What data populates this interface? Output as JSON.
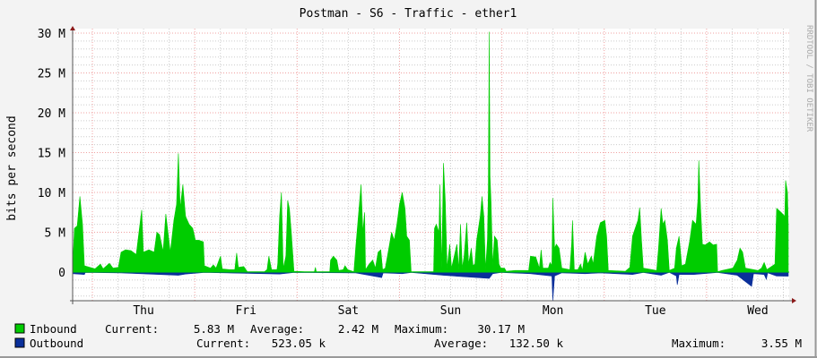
{
  "chart_data": {
    "type": "area",
    "title": "Postman - S6 - Traffic - ether1",
    "ylabel": "bits per second",
    "xlabel": "",
    "watermark": "RRDTOOL / TOBI OETIKER",
    "ylim": [
      -3.6,
      30.5
    ],
    "y_unit": "M",
    "y_ticks": [
      "30 M",
      "25 M",
      "20 M",
      "15 M",
      "10 M",
      "5 M",
      "0"
    ],
    "y_tick_values": [
      30,
      25,
      20,
      15,
      10,
      5,
      0
    ],
    "x_ticks": [
      "Thu",
      "Fri",
      "Sat",
      "Sun",
      "Mon",
      "Tue",
      "Wed"
    ],
    "grid": true,
    "legend_placement": "bottom",
    "colors": {
      "inbound": "#00cc00",
      "outbound": "#0a2f9a",
      "major_grid": "#f0a0a0",
      "minor_grid": "#cccccc",
      "plot_bg": "#ffffff"
    },
    "series": [
      {
        "name": "Inbound",
        "stats": {
          "current_label": "Current:",
          "current": "5.83 M",
          "average_label": "Average:",
          "average": "2.42 M",
          "maximum_label": "Maximum:",
          "maximum": "30.17 M"
        },
        "points": [
          [
            "Wed 19:23",
            0.8
          ],
          [
            "Wed 19:48",
            5.5
          ],
          [
            "Wed 20:26",
            5.8
          ],
          [
            "Wed 21:04",
            9.5
          ],
          [
            "Wed 21:41",
            6
          ],
          [
            "Wed 22:07",
            0.8
          ],
          [
            "Wed 23:22",
            0.6
          ],
          [
            "Thu 00:38",
            0.4
          ],
          [
            "Thu 01:53",
            1.0
          ],
          [
            "Thu 02:31",
            0.4
          ],
          [
            "Thu 03:59",
            1.1
          ],
          [
            "Thu 04:50",
            0.5
          ],
          [
            "Thu 06:05",
            0.6
          ],
          [
            "Thu 06:43",
            2.5
          ],
          [
            "Thu 07:46",
            2.8
          ],
          [
            "Thu 09:02",
            2.7
          ],
          [
            "Thu 10:17",
            2.2
          ],
          [
            "Thu 11:33",
            7.8
          ],
          [
            "Thu 11:58",
            2.5
          ],
          [
            "Thu 13:14",
            2.8
          ],
          [
            "Thu 14:29",
            2.5
          ],
          [
            "Thu 15:07",
            5.0
          ],
          [
            "Thu 15:45",
            4.7
          ],
          [
            "Thu 16:35",
            2.6
          ],
          [
            "Thu 17:13",
            7.3
          ],
          [
            "Thu 18:16",
            2.5
          ],
          [
            "Thu 19:07",
            6.5
          ],
          [
            "Thu 19:44",
            8.5
          ],
          [
            "Thu 20:10",
            14.9
          ],
          [
            "Thu 20:35",
            8
          ],
          [
            "Thu 21:13",
            11
          ],
          [
            "Thu 21:50",
            7
          ],
          [
            "Thu 22:41",
            6
          ],
          [
            "Thu 23:31",
            5.5
          ],
          [
            "Fri 00:09",
            4
          ],
          [
            "Fri 00:59",
            4.0
          ],
          [
            "Fri 02:02",
            3.8
          ],
          [
            "Fri 02:15",
            0.8
          ],
          [
            "Fri 03:43",
            0.5
          ],
          [
            "Fri 04:21",
            0.9
          ],
          [
            "Fri 04:59",
            0.5
          ],
          [
            "Fri 06:02",
            2.0
          ],
          [
            "Fri 06:27",
            0.4
          ],
          [
            "Fri 08:08",
            0.3
          ],
          [
            "Fri 09:23",
            0.3
          ],
          [
            "Fri 09:49",
            2.4
          ],
          [
            "Fri 10:14",
            0.6
          ],
          [
            "Fri 11:29",
            0.7
          ],
          [
            "Fri 12:20",
            0.05
          ],
          [
            "Fri 16:19",
            0.05
          ],
          [
            "Fri 16:57",
            0.3
          ],
          [
            "Fri 17:22",
            2.0
          ],
          [
            "Fri 18:00",
            0.3
          ],
          [
            "Fri 19:16",
            0.3
          ],
          [
            "Fri 19:28",
            1.0
          ],
          [
            "Fri 19:54",
            7
          ],
          [
            "Fri 20:19",
            10
          ],
          [
            "Fri 20:44",
            0.5
          ],
          [
            "Fri 21:22",
            2
          ],
          [
            "Fri 21:47",
            9
          ],
          [
            "Fri 22:12",
            8
          ],
          [
            "Fri 22:38",
            5
          ],
          [
            "Fri 23:16",
            0.1
          ],
          [
            "Sat 01:46",
            0.05
          ],
          [
            "Sat 04:04",
            0.05
          ],
          [
            "Sat 04:17",
            0.6
          ],
          [
            "Sat 04:30",
            0.05
          ],
          [
            "Sat 07:39",
            0.05
          ],
          [
            "Sat 07:51",
            1.5
          ],
          [
            "Sat 08:29",
            2.0
          ],
          [
            "Sat 09:19",
            1.5
          ],
          [
            "Sat 09:45",
            0.2
          ],
          [
            "Sat 10:48",
            0.3
          ],
          [
            "Sat 11:13",
            0.8
          ],
          [
            "Sat 11:51",
            0.3
          ],
          [
            "Sat 13:19",
            0.05
          ],
          [
            "Sat 13:44",
            3
          ],
          [
            "Sat 14:22",
            7
          ],
          [
            "Sat 15:00",
            11
          ],
          [
            "Sat 15:25",
            5
          ],
          [
            "Sat 15:50",
            7.5
          ],
          [
            "Sat 16:03",
            0.3
          ],
          [
            "Sat 16:53",
            1
          ],
          [
            "Sat 17:44",
            1.5
          ],
          [
            "Sat 18:21",
            0.5
          ],
          [
            "Sat 18:59",
            2.5
          ],
          [
            "Sat 19:37",
            2.8
          ],
          [
            "Sat 20:02",
            0.3
          ],
          [
            "Sat 20:40",
            0.5
          ],
          [
            "Sat 21:31",
            3
          ],
          [
            "Sat 22:08",
            5
          ],
          [
            "Sat 22:46",
            4
          ],
          [
            "Sat 23:24",
            6
          ],
          [
            "Sun 00:01",
            8.5
          ],
          [
            "Sun 00:39",
            10
          ],
          [
            "Sun 01:17",
            8
          ],
          [
            "Sun 01:42",
            4.5
          ],
          [
            "Sun 02:20",
            4
          ],
          [
            "Sun 02:45",
            0.05
          ],
          [
            "Sun 08:00",
            0.05
          ],
          [
            "Sun 08:13",
            5.5
          ],
          [
            "Sun 08:38",
            6
          ],
          [
            "Sun 09:16",
            5
          ],
          [
            "Sun 09:28",
            11
          ],
          [
            "Sun 09:54",
            0.5
          ],
          [
            "Sun 10:19",
            13.7
          ],
          [
            "Sun 10:44",
            9
          ],
          [
            "Sun 11:09",
            0.5
          ],
          [
            "Sun 11:47",
            3.5
          ],
          [
            "Sun 12:12",
            0.5
          ],
          [
            "Sun 13:03",
            2.5
          ],
          [
            "Sun 13:28",
            3.5
          ],
          [
            "Sun 13:53",
            0.3
          ],
          [
            "Sun 14:18",
            6
          ],
          [
            "Sun 14:44",
            0.5
          ],
          [
            "Sun 15:09",
            2
          ],
          [
            "Sun 15:47",
            6.2
          ],
          [
            "Sun 16:12",
            1
          ],
          [
            "Sun 16:50",
            3
          ],
          [
            "Sun 17:15",
            0.8
          ],
          [
            "Sun 17:40",
            1
          ],
          [
            "Sun 18:05",
            4
          ],
          [
            "Sun 18:56",
            7
          ],
          [
            "Sun 19:21",
            9.5
          ],
          [
            "Sun 19:46",
            7
          ],
          [
            "Sun 20:11",
            0.3
          ],
          [
            "Sun 20:37",
            4
          ],
          [
            "Sun 20:49",
            10
          ],
          [
            "Sun 21:02",
            30.17
          ],
          [
            "Sun 21:14",
            12
          ],
          [
            "Sun 21:27",
            9
          ],
          [
            "Sun 21:52",
            0.8
          ],
          [
            "Sun 22:17",
            4.5
          ],
          [
            "Sun 22:55",
            4
          ],
          [
            "Sun 23:20",
            1
          ],
          [
            "Sun 23:46",
            0.5
          ],
          [
            "Mon 00:37",
            0.5
          ],
          [
            "Mon 01:02",
            0.1
          ],
          [
            "Mon 03:08",
            0.2
          ],
          [
            "Mon 06:17",
            0.2
          ],
          [
            "Mon 06:42",
            2
          ],
          [
            "Mon 07:57",
            1.9
          ],
          [
            "Mon 08:48",
            0.5
          ],
          [
            "Mon 09:13",
            2.8
          ],
          [
            "Mon 09:38",
            0.5
          ],
          [
            "Mon 10:54",
            0.5
          ],
          [
            "Mon 11:19",
            1.2
          ],
          [
            "Mon 11:44",
            0.8
          ],
          [
            "Mon 11:57",
            9.3
          ],
          [
            "Mon 12:22",
            3
          ],
          [
            "Mon 12:47",
            3.5
          ],
          [
            "Mon 13:25",
            3
          ],
          [
            "Mon 14:03",
            0.5
          ],
          [
            "Mon 15:56",
            0.3
          ],
          [
            "Mon 16:21",
            3.5
          ],
          [
            "Mon 16:34",
            6.5
          ],
          [
            "Mon 16:59",
            0.3
          ],
          [
            "Mon 17:50",
            0.3
          ],
          [
            "Mon 18:28",
            1
          ],
          [
            "Mon 18:53",
            0.2
          ],
          [
            "Mon 19:31",
            2.5
          ],
          [
            "Mon 20:09",
            1
          ],
          [
            "Mon 20:59",
            2
          ],
          [
            "Mon 21:24",
            1
          ],
          [
            "Mon 22:15",
            4.5
          ],
          [
            "Mon 23:05",
            6.2
          ],
          [
            "Tue 00:08",
            6.5
          ],
          [
            "Tue 00:33",
            4.5
          ],
          [
            "Tue 00:58",
            0.2
          ],
          [
            "Tue 04:57",
            0.1
          ],
          [
            "Tue 06:00",
            0.6
          ],
          [
            "Tue 06:38",
            4.5
          ],
          [
            "Tue 07:16",
            5.5
          ],
          [
            "Tue 07:54",
            6.5
          ],
          [
            "Tue 08:19",
            8.1
          ],
          [
            "Tue 08:44",
            4
          ],
          [
            "Tue 09:09",
            0.5
          ],
          [
            "Tue 12:18",
            0.2
          ],
          [
            "Tue 12:44",
            3
          ],
          [
            "Tue 13:21",
            8
          ],
          [
            "Tue 13:46",
            6
          ],
          [
            "Tue 14:12",
            6.5
          ],
          [
            "Tue 14:49",
            4
          ],
          [
            "Tue 15:15",
            0.2
          ],
          [
            "Tue 16:30",
            0.5
          ],
          [
            "Tue 16:55",
            3
          ],
          [
            "Tue 17:33",
            4.5
          ],
          [
            "Tue 18:11",
            0.8
          ],
          [
            "Tue 19:02",
            1
          ],
          [
            "Tue 20:05",
            4
          ],
          [
            "Tue 20:42",
            6.5
          ],
          [
            "Tue 21:33",
            6
          ],
          [
            "Tue 21:58",
            9
          ],
          [
            "Tue 22:11",
            14
          ],
          [
            "Tue 22:36",
            8
          ],
          [
            "Tue 23:01",
            3.5
          ],
          [
            "Tue 23:39",
            3.4
          ],
          [
            "Wed 00:42",
            3.8
          ],
          [
            "Wed 01:32",
            3.4
          ],
          [
            "Wed 02:22",
            3.5
          ],
          [
            "Wed 02:35",
            0.05
          ],
          [
            "Wed 03:38",
            0.2
          ],
          [
            "Wed 06:09",
            0.5
          ],
          [
            "Wed 07:12",
            1.5
          ],
          [
            "Wed 07:50",
            3
          ],
          [
            "Wed 08:28",
            2.5
          ],
          [
            "Wed 09:06",
            0.5
          ],
          [
            "Wed 12:02",
            0.2
          ],
          [
            "Wed 12:53",
            0.5
          ],
          [
            "Wed 13:30",
            1.2
          ],
          [
            "Wed 14:08",
            0.3
          ],
          [
            "Wed 16:01",
            1
          ],
          [
            "Wed 16:26",
            8
          ],
          [
            "Wed 17:29",
            7.5
          ],
          [
            "Wed 18:20",
            7
          ],
          [
            "Wed 18:32",
            11.5
          ],
          [
            "Wed 18:58",
            10
          ],
          [
            "Wed 19:10",
            5.83
          ]
        ]
      },
      {
        "name": "Outbound",
        "stats": {
          "current_label": "Current:",
          "current": "523.05 k",
          "average_label": "Average:",
          "average": "132.50 k",
          "maximum_label": "Maximum:",
          "maximum": "3.55 M"
        },
        "points": [
          [
            "Wed 19:23",
            -0.2
          ],
          [
            "Wed 22:07",
            -0.3
          ],
          [
            "Wed 22:20",
            -0.05
          ],
          [
            "Thu 06:43",
            -0.1
          ],
          [
            "Thu 20:10",
            -0.4
          ],
          [
            "Thu 21:50",
            -0.25
          ],
          [
            "Fri 02:15",
            -0.05
          ],
          [
            "Fri 19:54",
            -0.25
          ],
          [
            "Fri 23:16",
            -0.05
          ],
          [
            "Sat 13:44",
            -0.1
          ],
          [
            "Sat 19:50",
            -0.7
          ],
          [
            "Sat 20:10",
            -0.1
          ],
          [
            "Sun 00:39",
            -0.2
          ],
          [
            "Sun 02:45",
            -0.05
          ],
          [
            "Sun 08:13",
            -0.3
          ],
          [
            "Sun 10:19",
            -0.4
          ],
          [
            "Sun 21:02",
            -0.8
          ],
          [
            "Sun 21:52",
            -0.2
          ],
          [
            "Sun 23:46",
            -0.05
          ],
          [
            "Mon 06:42",
            -0.2
          ],
          [
            "Mon 11:44",
            -0.5
          ],
          [
            "Mon 11:57",
            -3.55
          ],
          [
            "Mon 12:22",
            -0.5
          ],
          [
            "Mon 14:03",
            -0.1
          ],
          [
            "Mon 19:31",
            -0.2
          ],
          [
            "Mon 23:05",
            -0.1
          ],
          [
            "Tue 06:38",
            -0.3
          ],
          [
            "Tue 09:09",
            -0.05
          ],
          [
            "Tue 13:21",
            -0.4
          ],
          [
            "Tue 15:15",
            -0.05
          ],
          [
            "Tue 16:55",
            -0.5
          ],
          [
            "Tue 17:08",
            -1.6
          ],
          [
            "Tue 17:33",
            -0.3
          ],
          [
            "Tue 21:00",
            -0.3
          ],
          [
            "Wed 02:35",
            -0.05
          ],
          [
            "Wed 07:12",
            -0.4
          ],
          [
            "Wed 10:33",
            -1.8
          ],
          [
            "Wed 11:00",
            -0.2
          ],
          [
            "Wed 13:30",
            -0.3
          ],
          [
            "Wed 14:00",
            -0.9
          ],
          [
            "Wed 14:20",
            -0.1
          ],
          [
            "Wed 16:26",
            -0.5
          ],
          [
            "Wed 19:10",
            -0.52
          ]
        ]
      }
    ]
  }
}
